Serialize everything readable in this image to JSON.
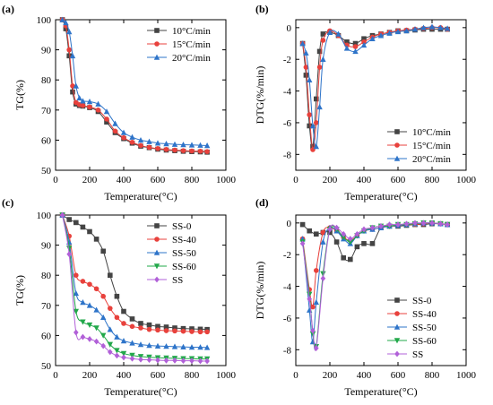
{
  "chart_data": [
    {
      "type": "line",
      "panel_label": "(a)",
      "xlabel": "Temperature(°C)",
      "ylabel": "TG(%)",
      "xlim": [
        0,
        1000
      ],
      "ylim": [
        50,
        100
      ],
      "xticks": [
        0,
        200,
        400,
        600,
        800,
        1000
      ],
      "yticks": [
        50,
        60,
        70,
        80,
        90,
        100
      ],
      "grid": false,
      "legend_position": "top-right",
      "series": [
        {
          "name": "10°C/min",
          "color": "#444444",
          "marker": "square",
          "x": [
            40,
            60,
            80,
            100,
            120,
            140,
            160,
            200,
            250,
            300,
            350,
            400,
            450,
            500,
            550,
            600,
            650,
            700,
            750,
            800,
            850,
            890
          ],
          "y": [
            100,
            97,
            88,
            76,
            72,
            71.5,
            71.3,
            70.8,
            69.5,
            66,
            62.5,
            60.5,
            59,
            58,
            57.5,
            57,
            56.7,
            56.5,
            56.3,
            56.2,
            56.1,
            56
          ]
        },
        {
          "name": "15°C/min",
          "color": "#e8413c",
          "marker": "circle",
          "x": [
            40,
            60,
            80,
            100,
            120,
            140,
            160,
            200,
            250,
            300,
            350,
            400,
            450,
            500,
            550,
            600,
            650,
            700,
            750,
            800,
            850,
            890
          ],
          "y": [
            100,
            98,
            90,
            78,
            72.5,
            71.8,
            71.5,
            71,
            70,
            67,
            63,
            60.8,
            59.3,
            58.2,
            57.6,
            57.2,
            56.9,
            56.7,
            56.5,
            56.4,
            56.3,
            56.2
          ]
        },
        {
          "name": "20°C/min",
          "color": "#2e74c9",
          "marker": "triangle",
          "x": [
            40,
            60,
            80,
            100,
            120,
            140,
            160,
            200,
            250,
            300,
            350,
            400,
            450,
            500,
            550,
            600,
            650,
            700,
            750,
            800,
            850,
            890
          ],
          "y": [
            100,
            99,
            96,
            88,
            78,
            74,
            73,
            72.8,
            72,
            69.5,
            65.5,
            62.5,
            61,
            60,
            59.5,
            59,
            58.8,
            58.6,
            58.5,
            58.4,
            58.3,
            58.2
          ]
        }
      ]
    },
    {
      "type": "line",
      "panel_label": "(b)",
      "xlabel": "Temperature(°C)",
      "ylabel": "DTG(%/min)",
      "xlim": [
        0,
        1000
      ],
      "ylim": [
        -9,
        0.5
      ],
      "xticks": [
        0,
        200,
        400,
        600,
        800,
        1000
      ],
      "yticks": [
        0,
        -2,
        -4,
        -6,
        -8
      ],
      "grid": false,
      "legend_position": "bottom-right",
      "series": [
        {
          "name": "10°C/min",
          "color": "#444444",
          "marker": "square",
          "x": [
            40,
            60,
            80,
            100,
            120,
            140,
            160,
            200,
            250,
            300,
            350,
            400,
            450,
            500,
            550,
            600,
            650,
            700,
            750,
            800,
            850,
            890
          ],
          "y": [
            -1,
            -3,
            -6.2,
            -7.5,
            -4.5,
            -1.5,
            -0.4,
            -0.3,
            -0.5,
            -0.9,
            -1,
            -0.7,
            -0.5,
            -0.4,
            -0.3,
            -0.2,
            -0.2,
            -0.15,
            -0.1,
            -0.1,
            -0.1,
            -0.1
          ]
        },
        {
          "name": "15°C/min",
          "color": "#e8413c",
          "marker": "circle",
          "x": [
            40,
            60,
            80,
            100,
            120,
            140,
            160,
            200,
            250,
            300,
            350,
            400,
            450,
            500,
            550,
            600,
            650,
            700,
            750,
            800,
            850,
            890
          ],
          "y": [
            -1,
            -2.5,
            -5.5,
            -7.7,
            -6,
            -2.5,
            -0.8,
            -0.2,
            -0.5,
            -1.1,
            -1.2,
            -0.9,
            -0.6,
            -0.4,
            -0.3,
            -0.2,
            -0.15,
            -0.1,
            -0.05,
            0,
            0,
            -0.1
          ]
        },
        {
          "name": "20°C/min",
          "color": "#2e74c9",
          "marker": "triangle",
          "x": [
            40,
            60,
            80,
            100,
            120,
            140,
            160,
            200,
            250,
            300,
            350,
            400,
            450,
            500,
            550,
            600,
            650,
            700,
            750,
            800,
            850,
            890
          ],
          "y": [
            -1,
            -1.6,
            -3.3,
            -6.2,
            -7.5,
            -5,
            -2,
            -0.3,
            -0.4,
            -1.3,
            -1.5,
            -1.1,
            -0.7,
            -0.5,
            -0.35,
            -0.25,
            -0.2,
            -0.1,
            0,
            0.05,
            0,
            -0.05
          ]
        }
      ]
    },
    {
      "type": "line",
      "panel_label": "(c)",
      "xlabel": "Temperature(°C)",
      "ylabel": "TG(%)",
      "xlim": [
        0,
        1000
      ],
      "ylim": [
        50,
        100
      ],
      "xticks": [
        0,
        200,
        400,
        600,
        800,
        1000
      ],
      "yticks": [
        50,
        60,
        70,
        80,
        90,
        100
      ],
      "grid": false,
      "legend_position": "top-right",
      "series": [
        {
          "name": "SS-0",
          "color": "#444444",
          "marker": "square",
          "x": [
            40,
            80,
            120,
            160,
            200,
            240,
            280,
            320,
            360,
            400,
            450,
            500,
            550,
            600,
            650,
            700,
            750,
            800,
            850,
            890
          ],
          "y": [
            100,
            98.5,
            97.5,
            96,
            94.5,
            92,
            88,
            80,
            73,
            68,
            65.5,
            64,
            63.5,
            63,
            62.8,
            62.5,
            62.3,
            62.2,
            62.1,
            62
          ]
        },
        {
          "name": "SS-40",
          "color": "#e8413c",
          "marker": "circle",
          "x": [
            40,
            80,
            120,
            160,
            200,
            240,
            280,
            320,
            360,
            400,
            450,
            500,
            550,
            600,
            650,
            700,
            750,
            800,
            850,
            890
          ],
          "y": [
            100,
            93,
            80,
            78,
            77,
            75.5,
            73,
            69,
            66,
            64,
            63,
            62.5,
            62,
            61.8,
            61.6,
            61.5,
            61.4,
            61.3,
            61.2,
            61.2
          ]
        },
        {
          "name": "SS-50",
          "color": "#2e74c9",
          "marker": "triangle",
          "x": [
            40,
            80,
            120,
            160,
            200,
            240,
            280,
            320,
            360,
            400,
            450,
            500,
            550,
            600,
            650,
            700,
            750,
            800,
            850,
            890
          ],
          "y": [
            100,
            91,
            74,
            71,
            70,
            68.5,
            66,
            62,
            59.5,
            58.2,
            57.5,
            57,
            56.7,
            56.5,
            56.4,
            56.3,
            56.2,
            56.1,
            56.1,
            56
          ]
        },
        {
          "name": "SS-60",
          "color": "#22a84a",
          "marker": "triangle-down",
          "x": [
            40,
            80,
            120,
            160,
            200,
            240,
            280,
            320,
            360,
            400,
            450,
            500,
            550,
            600,
            650,
            700,
            750,
            800,
            850,
            890
          ],
          "y": [
            100,
            89,
            68,
            64.5,
            63.5,
            62.5,
            60,
            57,
            55,
            54,
            53.4,
            53,
            52.8,
            52.6,
            52.5,
            52.4,
            52.3,
            52.3,
            52.2,
            52.2
          ]
        },
        {
          "name": "SS",
          "color": "#b160d8",
          "marker": "diamond",
          "x": [
            40,
            80,
            120,
            160,
            200,
            240,
            280,
            320,
            360,
            400,
            450,
            500,
            550,
            600,
            650,
            700,
            750,
            800,
            850,
            890
          ],
          "y": [
            100,
            87,
            61,
            59.5,
            58.8,
            58,
            56.5,
            54.5,
            53.3,
            52.7,
            52.3,
            52,
            51.9,
            51.8,
            51.7,
            51.7,
            51.6,
            51.6,
            51.5,
            51.5
          ]
        }
      ]
    },
    {
      "type": "line",
      "panel_label": "(d)",
      "xlabel": "Temperature(°C)",
      "ylabel": "DTG(%/min)",
      "xlim": [
        0,
        1000
      ],
      "ylim": [
        -9,
        0.5
      ],
      "xticks": [
        0,
        200,
        400,
        600,
        800,
        1000
      ],
      "yticks": [
        0,
        -2,
        -4,
        -6,
        -8
      ],
      "grid": false,
      "legend_position": "bottom-right",
      "series": [
        {
          "name": "SS-0",
          "color": "#444444",
          "marker": "square",
          "x": [
            40,
            80,
            120,
            160,
            200,
            240,
            280,
            320,
            360,
            400,
            450,
            500,
            550,
            600,
            650,
            700,
            750,
            800,
            850,
            890
          ],
          "y": [
            -0.1,
            -0.5,
            -0.7,
            -0.6,
            -0.6,
            -1.2,
            -2.2,
            -2.3,
            -1.5,
            -1.3,
            -1.3,
            -0.3,
            -0.2,
            -0.2,
            -0.15,
            -0.1,
            -0.1,
            -0.05,
            -0.05,
            -0.1
          ]
        },
        {
          "name": "SS-40",
          "color": "#e8413c",
          "marker": "circle",
          "x": [
            40,
            80,
            100,
            120,
            160,
            200,
            240,
            280,
            320,
            360,
            400,
            450,
            500,
            550,
            600,
            650,
            700,
            750,
            800,
            850,
            890
          ],
          "y": [
            -1,
            -4.2,
            -5.3,
            -3,
            -0.6,
            -0.3,
            -0.5,
            -0.9,
            -1.1,
            -0.8,
            -0.5,
            -0.4,
            -0.3,
            -0.2,
            -0.15,
            -0.1,
            -0.1,
            -0.05,
            0,
            -0.05,
            -0.1
          ]
        },
        {
          "name": "SS-50",
          "color": "#2e74c9",
          "marker": "triangle",
          "x": [
            40,
            80,
            100,
            120,
            160,
            200,
            240,
            280,
            320,
            360,
            400,
            450,
            500,
            550,
            600,
            650,
            700,
            750,
            800,
            850,
            890
          ],
          "y": [
            -1,
            -5.5,
            -7.5,
            -5,
            -1.2,
            -0.3,
            -0.5,
            -1,
            -1.3,
            -0.8,
            -0.5,
            -0.4,
            -0.3,
            -0.2,
            -0.15,
            -0.1,
            -0.05,
            0,
            0,
            -0.05,
            -0.1
          ]
        },
        {
          "name": "SS-60",
          "color": "#22a84a",
          "marker": "triangle-down",
          "x": [
            40,
            80,
            100,
            120,
            160,
            200,
            240,
            280,
            320,
            360,
            400,
            450,
            500,
            550,
            600,
            650,
            700,
            750,
            800,
            850,
            890
          ],
          "y": [
            -1.2,
            -4.5,
            -7,
            -7.8,
            -3.2,
            -0.4,
            -0.4,
            -0.9,
            -1.2,
            -0.8,
            -0.5,
            -0.3,
            -0.2,
            -0.2,
            -0.1,
            -0.1,
            -0.05,
            0,
            0,
            -0.05,
            -0.1
          ]
        },
        {
          "name": "SS",
          "color": "#b160d8",
          "marker": "diamond",
          "x": [
            40,
            80,
            100,
            120,
            160,
            200,
            240,
            280,
            320,
            360,
            400,
            450,
            500,
            550,
            600,
            650,
            700,
            750,
            800,
            850,
            890
          ],
          "y": [
            -1.3,
            -4.8,
            -6.8,
            -7.9,
            -3.5,
            -0.4,
            -0.3,
            -0.7,
            -1,
            -0.7,
            -0.4,
            -0.3,
            -0.2,
            -0.1,
            -0.1,
            -0.05,
            0,
            0,
            0,
            -0.05,
            -0.1
          ]
        }
      ]
    }
  ]
}
